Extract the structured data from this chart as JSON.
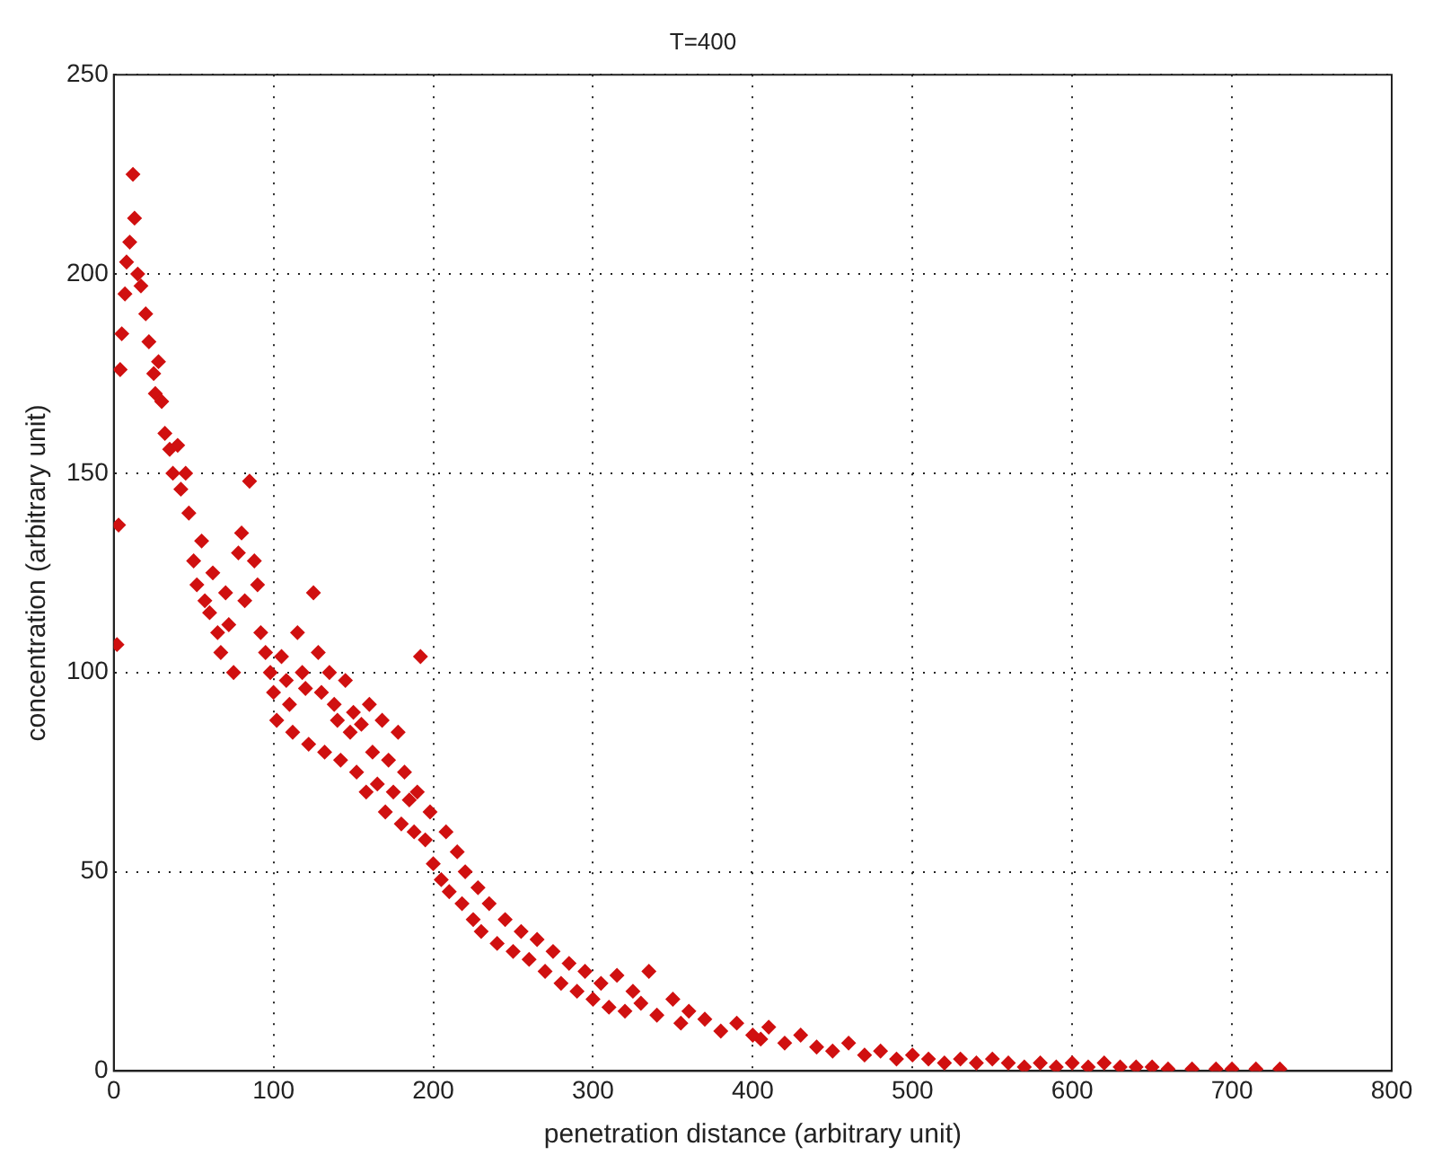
{
  "chart_data": {
    "type": "scatter",
    "title": "T=400",
    "xlabel": "penetration distance (arbitrary unit)",
    "ylabel": "concentration (arbitrary unit)",
    "xlim": [
      0,
      800
    ],
    "xticks": [
      0,
      100,
      200,
      300,
      400,
      500,
      600,
      700,
      800
    ],
    "ylim": [
      0,
      250
    ],
    "yticks": [
      0,
      50,
      100,
      150,
      200,
      250
    ],
    "grid": true,
    "marker": "diamond",
    "legend": false,
    "series": [
      {
        "color": "#d01010",
        "x": [
          2,
          3,
          4,
          5,
          7,
          8,
          10,
          12,
          13,
          15,
          17,
          20,
          22,
          25,
          26,
          28,
          30,
          32,
          35,
          37,
          40,
          42,
          45,
          47,
          50,
          52,
          55,
          57,
          60,
          62,
          65,
          67,
          70,
          72,
          75,
          78,
          80,
          82,
          85,
          88,
          90,
          92,
          95,
          98,
          100,
          102,
          105,
          108,
          110,
          112,
          115,
          118,
          120,
          122,
          125,
          128,
          130,
          132,
          135,
          138,
          140,
          142,
          145,
          148,
          150,
          152,
          155,
          158,
          160,
          162,
          165,
          168,
          170,
          172,
          175,
          178,
          180,
          182,
          185,
          188,
          190,
          192,
          195,
          198,
          200,
          205,
          208,
          210,
          215,
          218,
          220,
          225,
          228,
          230,
          235,
          240,
          245,
          250,
          255,
          260,
          265,
          270,
          275,
          280,
          285,
          290,
          295,
          300,
          305,
          310,
          315,
          320,
          325,
          330,
          335,
          340,
          350,
          355,
          360,
          370,
          380,
          390,
          400,
          405,
          410,
          420,
          430,
          440,
          450,
          460,
          470,
          480,
          490,
          500,
          510,
          520,
          530,
          540,
          550,
          560,
          570,
          580,
          590,
          600,
          610,
          620,
          630,
          640,
          650,
          660,
          675,
          690,
          700,
          715,
          730
        ],
        "values": [
          107,
          137,
          176,
          185,
          195,
          203,
          208,
          225,
          214,
          200,
          197,
          190,
          183,
          175,
          170,
          178,
          168,
          160,
          156,
          150,
          157,
          146,
          150,
          140,
          128,
          122,
          133,
          118,
          115,
          125,
          110,
          105,
          120,
          112,
          100,
          130,
          135,
          118,
          148,
          128,
          122,
          110,
          105,
          100,
          95,
          88,
          104,
          98,
          92,
          85,
          110,
          100,
          96,
          82,
          120,
          105,
          95,
          80,
          100,
          92,
          88,
          78,
          98,
          85,
          90,
          75,
          87,
          70,
          92,
          80,
          72,
          88,
          65,
          78,
          70,
          85,
          62,
          75,
          68,
          60,
          70,
          104,
          58,
          65,
          52,
          48,
          60,
          45,
          55,
          42,
          50,
          38,
          46,
          35,
          42,
          32,
          38,
          30,
          35,
          28,
          33,
          25,
          30,
          22,
          27,
          20,
          25,
          18,
          22,
          16,
          24,
          15,
          20,
          17,
          25,
          14,
          18,
          12,
          15,
          13,
          10,
          12,
          9,
          8,
          11,
          7,
          9,
          6,
          5,
          7,
          4,
          5,
          3,
          4,
          3,
          2,
          3,
          2,
          3,
          2,
          1,
          2,
          1,
          2,
          1,
          2,
          1,
          1,
          1,
          0.5,
          0.5,
          0.5,
          0.5,
          0.5,
          0.5
        ]
      }
    ]
  }
}
